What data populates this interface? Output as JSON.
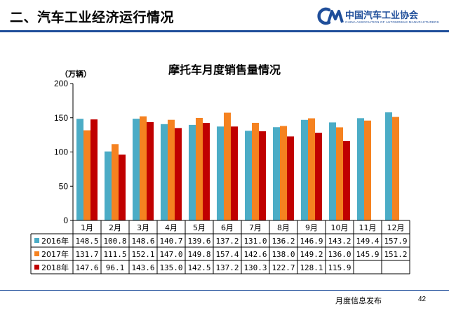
{
  "slide_title": "二、汽车工业经济运行情况",
  "logo": {
    "org_name": "中国汽车工业协会",
    "org_name_en": "CHINA ASSOCIATION OF AUTOMOBILE MANUFACTURERS"
  },
  "footer": {
    "text": "月度信息发布",
    "page": "42"
  },
  "colors": {
    "series_2016": "#4bacc6",
    "series_2017": "#f58220",
    "series_2018": "#c00000",
    "brand": "#1f4e9a"
  },
  "chart_data": {
    "type": "bar",
    "title": "摩托车月度销售量情况",
    "ylabel": "（万辆）",
    "xlabel": "",
    "ylim": [
      0,
      200
    ],
    "yticks": [
      0,
      50,
      100,
      150,
      200
    ],
    "grid": false,
    "legend": "data-table-left",
    "categories": [
      "1月",
      "2月",
      "3月",
      "4月",
      "5月",
      "6月",
      "7月",
      "8月",
      "9月",
      "10月",
      "11月",
      "12月"
    ],
    "series": [
      {
        "name": "2016年",
        "values": [
          148.5,
          100.8,
          148.6,
          140.7,
          139.6,
          137.2,
          131.0,
          136.2,
          146.9,
          143.2,
          149.4,
          157.9
        ]
      },
      {
        "name": "2017年",
        "values": [
          131.7,
          111.5,
          152.1,
          147.0,
          149.8,
          157.4,
          142.6,
          138.0,
          149.2,
          136.0,
          145.9,
          151.2
        ]
      },
      {
        "name": "2018年",
        "values": [
          147.6,
          96.1,
          143.6,
          135.0,
          142.5,
          137.2,
          130.3,
          122.7,
          128.1,
          115.9,
          null,
          null
        ]
      }
    ],
    "table_values": [
      [
        "148.5",
        "100.8",
        "148.6",
        "140.7",
        "139.6",
        "137.2",
        "131.0",
        "136.2",
        "146.9",
        "143.2",
        "149.4",
        "157.9"
      ],
      [
        "131.7",
        "111.5",
        "152.1",
        "147.0",
        "149.8",
        "157.4",
        "142.6",
        "138.0",
        "149.2",
        "136.0",
        "145.9",
        "151.2"
      ],
      [
        "147.6",
        "96.1",
        "143.6",
        "135.0",
        "142.5",
        "137.2",
        "130.3",
        "122.7",
        "128.1",
        "115.9",
        "",
        ""
      ]
    ]
  }
}
